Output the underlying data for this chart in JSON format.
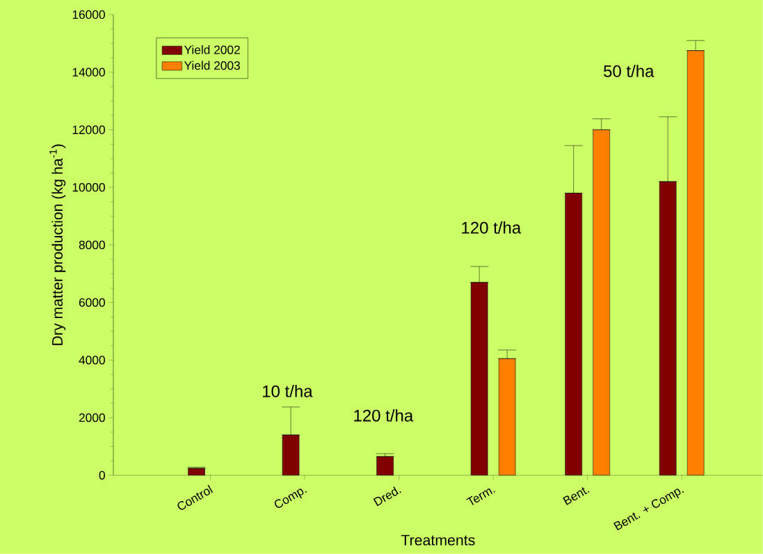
{
  "chart_data": {
    "type": "bar",
    "xlabel": "Treatments",
    "ylabel": "Dry matter production (kg ha$^{-1}$)",
    "categories": [
      "Control",
      "Comp.",
      "Dred.",
      "Term.",
      "Bent.",
      "Bent. + Comp."
    ],
    "series": [
      {
        "name": "Yield 2002",
        "color": "#800000",
        "values": [
          240,
          1400,
          650,
          6700,
          9800,
          10200
        ],
        "errors": [
          [
            240,
            280
          ],
          [
            1400,
            2370
          ],
          [
            650,
            750
          ],
          [
            6700,
            7250
          ],
          [
            9800,
            11450
          ],
          [
            10200,
            12450
          ]
        ]
      },
      {
        "name": "Yield 2003",
        "color": "#ff8000",
        "values": [
          null,
          null,
          null,
          4050,
          12000,
          14750
        ],
        "errors": [
          null,
          null,
          null,
          [
            4050,
            4350
          ],
          [
            12000,
            12380
          ],
          [
            14750,
            15100
          ]
        ]
      }
    ],
    "ylim": [
      0,
      16000
    ],
    "yticks": [
      0,
      2000,
      4000,
      6000,
      8000,
      10000,
      12000,
      14000,
      16000
    ],
    "legend": "top left",
    "grid": false,
    "annotations": [
      "10 t/ha",
      "120 t/ha",
      "120 t/ha",
      "50 t/ha"
    ]
  }
}
